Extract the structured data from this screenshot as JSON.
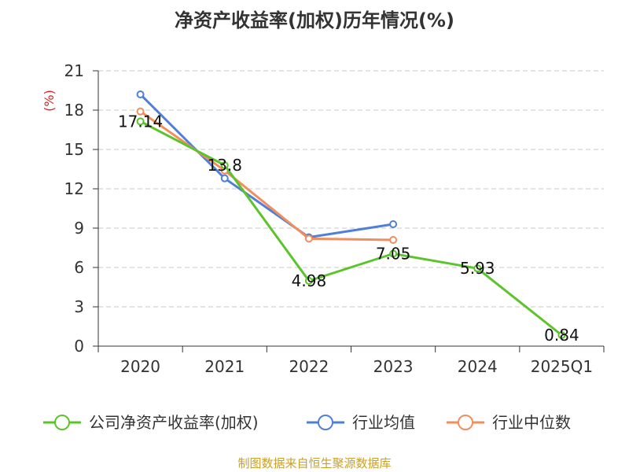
{
  "chart_data": {
    "type": "line",
    "title": "净资产收益率(加权)历年情况(%)",
    "ylabel": "(%)",
    "xlabel": "",
    "categories": [
      "2020",
      "2021",
      "2022",
      "2023",
      "2024",
      "2025Q1"
    ],
    "ylim": [
      0,
      21
    ],
    "yticks": [
      0,
      3,
      6,
      9,
      12,
      15,
      18,
      21
    ],
    "grid": true,
    "legend": "bottom",
    "series": [
      {
        "name": "公司净资产收益率(加权)",
        "color": "#5cc42b",
        "values": [
          17.14,
          13.8,
          4.98,
          7.05,
          5.93,
          0.84
        ],
        "labels": [
          "17.14",
          "13.8",
          "4.98",
          "7.05",
          "5.93",
          "0.84"
        ]
      },
      {
        "name": "行业均值",
        "color": "#4f7fd8",
        "values": [
          19.2,
          12.8,
          8.3,
          9.3,
          null,
          null
        ]
      },
      {
        "name": "行业中位数",
        "color": "#f28e5e",
        "values": [
          17.9,
          13.4,
          8.2,
          8.1,
          null,
          null
        ]
      }
    ]
  },
  "source": "制图数据来自恒生聚源数据库"
}
